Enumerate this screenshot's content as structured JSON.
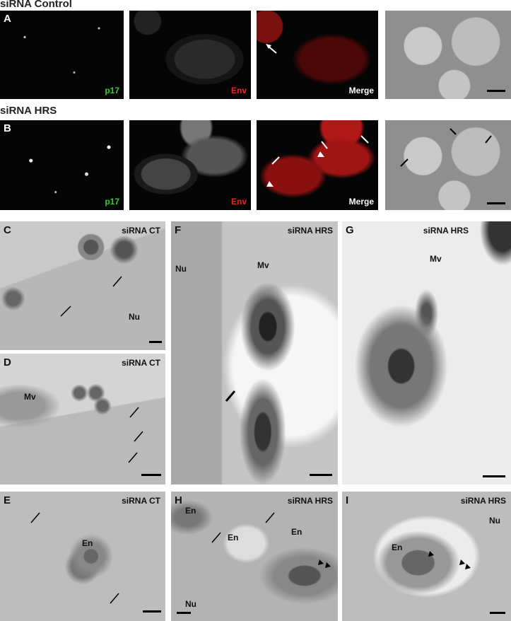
{
  "sections": [
    {
      "title": "siRNA Control"
    },
    {
      "title": "siRNA HRS"
    }
  ],
  "panels": {
    "A": {
      "label": "A",
      "channels": [
        "p17",
        "Env",
        "Merge"
      ]
    },
    "B": {
      "label": "B",
      "channels": [
        "p17",
        "Env",
        "Merge"
      ]
    },
    "C": {
      "label": "C",
      "condition": "siRNA CT",
      "annotations": [
        "Nu"
      ]
    },
    "D": {
      "label": "D",
      "condition": "siRNA CT",
      "annotations": [
        "Mv"
      ]
    },
    "E": {
      "label": "E",
      "condition": "siRNA CT",
      "annotations": [
        "En"
      ]
    },
    "F": {
      "label": "F",
      "condition": "siRNA HRS",
      "annotations": [
        "Nu",
        "Mv"
      ]
    },
    "G": {
      "label": "G",
      "condition": "siRNA HRS",
      "annotations": [
        "Mv"
      ]
    },
    "H": {
      "label": "H",
      "condition": "siRNA HRS",
      "annotations": [
        "En",
        "En",
        "En",
        "Nu"
      ]
    },
    "I": {
      "label": "I",
      "condition": "siRNA HRS",
      "annotations": [
        "Nu",
        "En"
      ]
    }
  }
}
